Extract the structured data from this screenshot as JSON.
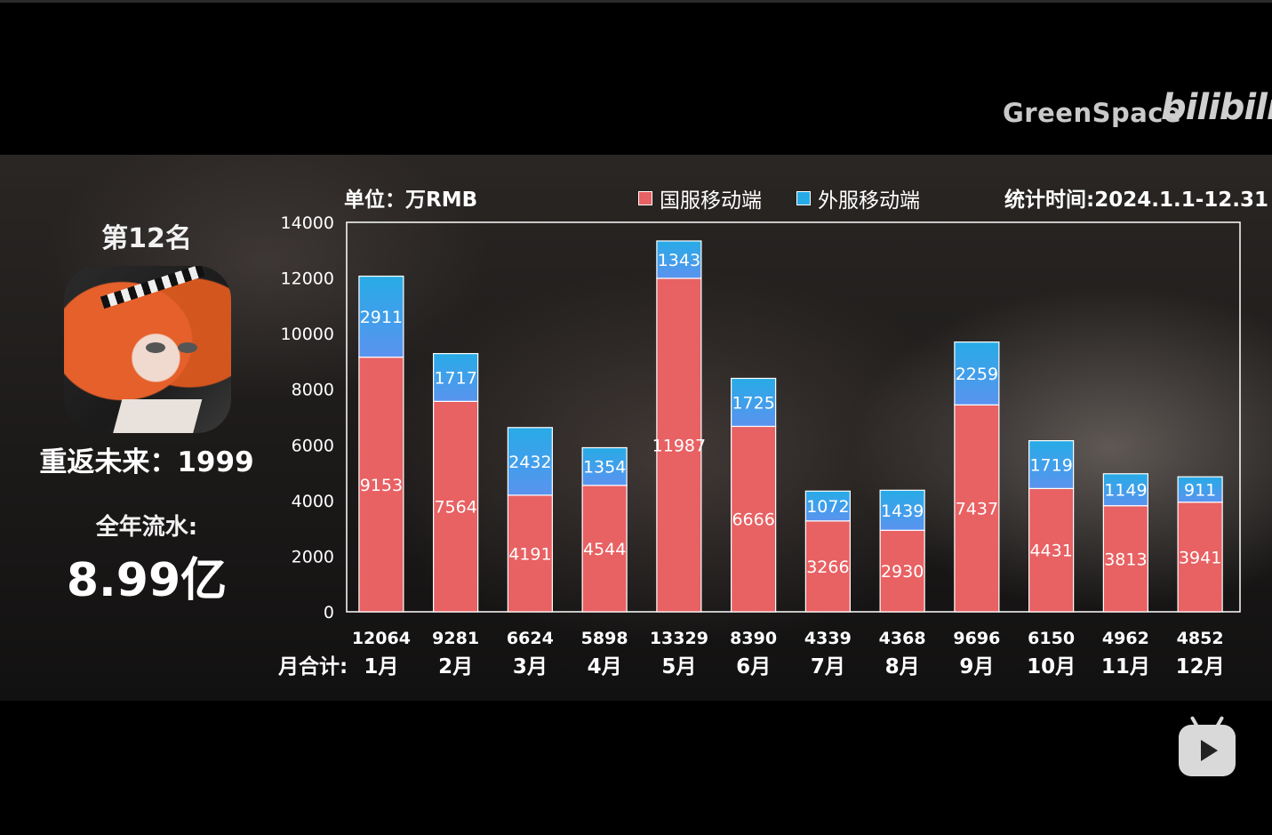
{
  "watermark": {
    "text": "GreenSpace",
    "logo": "bilibili"
  },
  "header": {
    "unit_label": "单位：万RMB",
    "period_label": "统计时间:2024.1.1-12.31"
  },
  "ranking": {
    "rank_label": "第12名",
    "app_icon": "game-app-icon"
  },
  "game_name": "重返未来：1999",
  "annual": {
    "label": "全年流水:",
    "value": "8.99亿"
  },
  "row_label": "月合计:",
  "colors": {
    "domestic": "#e86163",
    "overseas_top": "#27abe6",
    "overseas_bottom": "#5a93ef",
    "axis": "#ffffff"
  },
  "chart_data": {
    "type": "bar",
    "stacked": true,
    "categories": [
      "1月",
      "2月",
      "3月",
      "4月",
      "5月",
      "6月",
      "7月",
      "8月",
      "9月",
      "10月",
      "11月",
      "12月"
    ],
    "series": [
      {
        "name": "国服移动端",
        "values": [
          9153,
          7564,
          4191,
          4544,
          11987,
          6666,
          3266,
          2930,
          7437,
          4431,
          3813,
          3941
        ]
      },
      {
        "name": "外服移动端",
        "values": [
          2911,
          1717,
          2432,
          1354,
          1343,
          1725,
          1072,
          1439,
          2259,
          1719,
          1149,
          911
        ]
      }
    ],
    "totals": [
      12064,
      9281,
      6624,
      5898,
      13329,
      8390,
      4339,
      4368,
      9696,
      6150,
      4962,
      4852
    ],
    "ylim": [
      0,
      14000
    ],
    "yticks": [
      0,
      2000,
      4000,
      6000,
      8000,
      10000,
      12000,
      14000
    ],
    "legend_position": "top",
    "grid": false
  },
  "controls": {
    "play_button": "play-icon"
  }
}
